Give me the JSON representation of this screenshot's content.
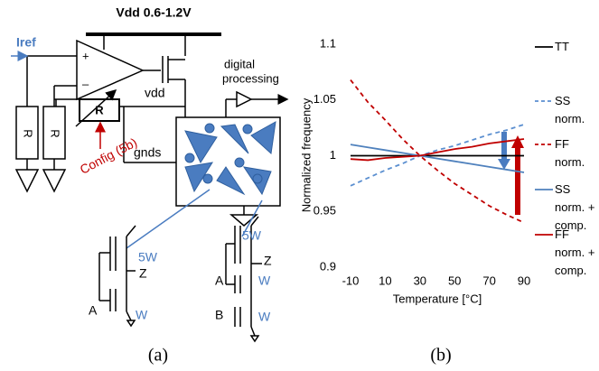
{
  "diagram": {
    "supply": "Vdd 0.6-1.2V",
    "iref": "Iref",
    "plus": "+",
    "minus": "–",
    "vdd": "vdd",
    "resistors": [
      "R",
      "R",
      "R"
    ],
    "config": "Config (5b)",
    "gnds": "gnds",
    "digital": "digital",
    "processing": "processing",
    "inverter": {
      "size_p": "5W",
      "out": "Z",
      "in": "A",
      "size_n": "W"
    },
    "nand": {
      "size_p": "5W",
      "out": "Z",
      "in_a": "A",
      "size_a": "W",
      "in_b": "B",
      "size_b": "W"
    },
    "caption_a": "(a)",
    "caption_b": "(b)"
  },
  "chart_data": {
    "type": "line",
    "ylabel": "Normalized frequency",
    "xlabel": "Temperature [°C]",
    "x": [
      -10,
      0,
      10,
      20,
      30,
      40,
      50,
      60,
      70,
      80,
      90
    ],
    "xlim": [
      -10,
      90
    ],
    "xticks": [
      -10,
      10,
      30,
      50,
      70,
      90
    ],
    "ylim": [
      0.9,
      1.1
    ],
    "yticks": [
      0.9,
      0.95,
      1,
      1.05,
      1.1
    ],
    "series": [
      {
        "name": "TT",
        "color": "#000000",
        "dashed": false,
        "values": [
          1,
          1,
          1,
          1,
          1,
          1,
          1,
          1,
          1,
          1,
          1
        ]
      },
      {
        "name": "SS norm.",
        "color": "#5b8fd0",
        "dashed": true,
        "values": [
          0.973,
          0.98,
          0.987,
          0.993,
          1.0,
          1.005,
          1.009,
          1.014,
          1.019,
          1.023,
          1.028
        ]
      },
      {
        "name": "FF norm.",
        "color": "#c00000",
        "dashed": true,
        "values": [
          1.068,
          1.048,
          1.032,
          1.015,
          1.0,
          0.987,
          0.975,
          0.965,
          0.955,
          0.947,
          0.94
        ]
      },
      {
        "name": "SS norm. + comp.",
        "color": "#4f81bd",
        "dashed": false,
        "values": [
          1.01,
          1.0075,
          1.005,
          1.0025,
          1.0,
          0.9975,
          0.995,
          0.9925,
          0.99,
          0.9875,
          0.985
        ]
      },
      {
        "name": "FF norm. + comp.",
        "color": "#c00000",
        "dashed": false,
        "values": [
          0.997,
          0.996,
          0.998,
          0.999,
          1.0,
          1.003,
          1.006,
          1.008,
          1.011,
          1.013,
          1.015
        ]
      }
    ]
  }
}
